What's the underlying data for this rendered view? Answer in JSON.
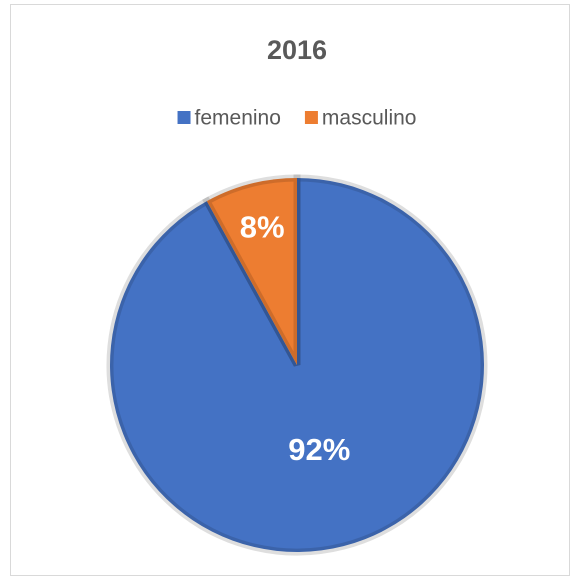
{
  "chart_data": {
    "type": "pie",
    "title": "2016",
    "categories": [
      "femenino",
      "masculino"
    ],
    "values": [
      92,
      8
    ],
    "value_labels": [
      "92%",
      "8%"
    ],
    "colors": [
      "#4472c4",
      "#ed7d31"
    ],
    "legend": "top"
  }
}
